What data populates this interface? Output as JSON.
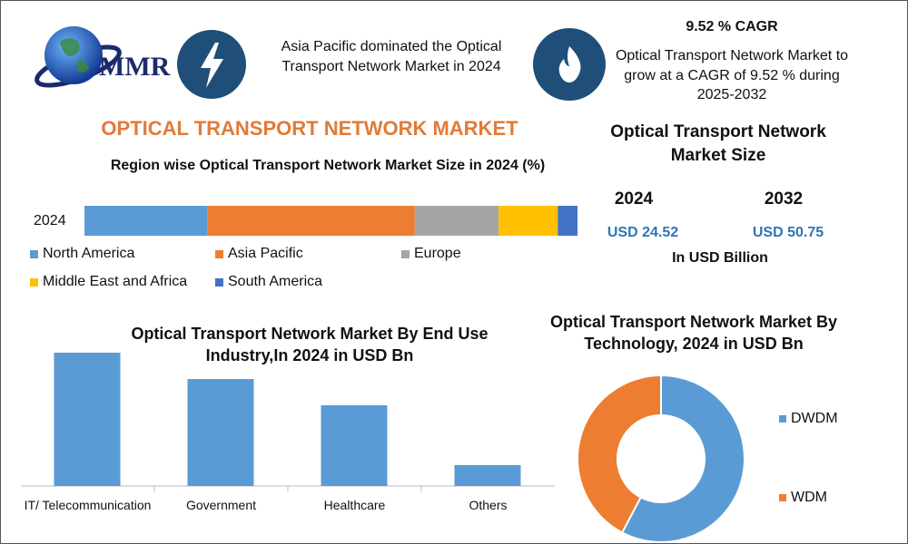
{
  "header": {
    "logo": "MMR",
    "highlight": "Asia Pacific dominated the Optical Transport Network Market in 2024",
    "cagr_title": "9.52 % CAGR",
    "cagr_text": "Optical Transport Network Market to grow at a CAGR of 9.52 % during 2025-2032"
  },
  "title": "OPTICAL TRANSPORT NETWORK MARKET",
  "market_size": {
    "title": "Optical Transport Network Market Size",
    "years": [
      "2024",
      "2032"
    ],
    "values": [
      "USD 24.52",
      "USD 50.75"
    ],
    "unit": "In USD Billion"
  },
  "chart_data": [
    {
      "type": "stacked_hbar",
      "title": "Region wise Optical Transport Network Market Size in 2024 (%)",
      "categories": [
        "2024"
      ],
      "xlim": [
        0,
        100
      ],
      "series": [
        {
          "name": "North America",
          "color": "#5b9bd5",
          "values": [
            25
          ]
        },
        {
          "name": "Asia Pacific",
          "color": "#ed7d31",
          "values": [
            42
          ]
        },
        {
          "name": "Europe",
          "color": "#a5a5a5",
          "values": [
            17
          ]
        },
        {
          "name": "Middle East and Africa",
          "color": "#ffc000",
          "values": [
            12
          ]
        },
        {
          "name": "South America",
          "color": "#4472c4",
          "values": [
            4
          ]
        }
      ]
    },
    {
      "type": "bar",
      "title": "Optical Transport Network Market  By End Use Industry,In 2024 in USD Bn",
      "categories": [
        "IT/ Telecommunication",
        "Government",
        "Healthcare",
        "Others"
      ],
      "values": [
        9.56,
        7.67,
        5.79,
        1.5
      ],
      "color": "#5b9bd5"
    },
    {
      "type": "donut",
      "title": "Optical Transport Network Market By Technology, 2024 in USD Bn",
      "categories": [
        "DWDM",
        "WDM"
      ],
      "values": [
        14.15,
        10.37
      ],
      "colors": [
        "#5b9bd5",
        "#ed7d31"
      ]
    }
  ]
}
